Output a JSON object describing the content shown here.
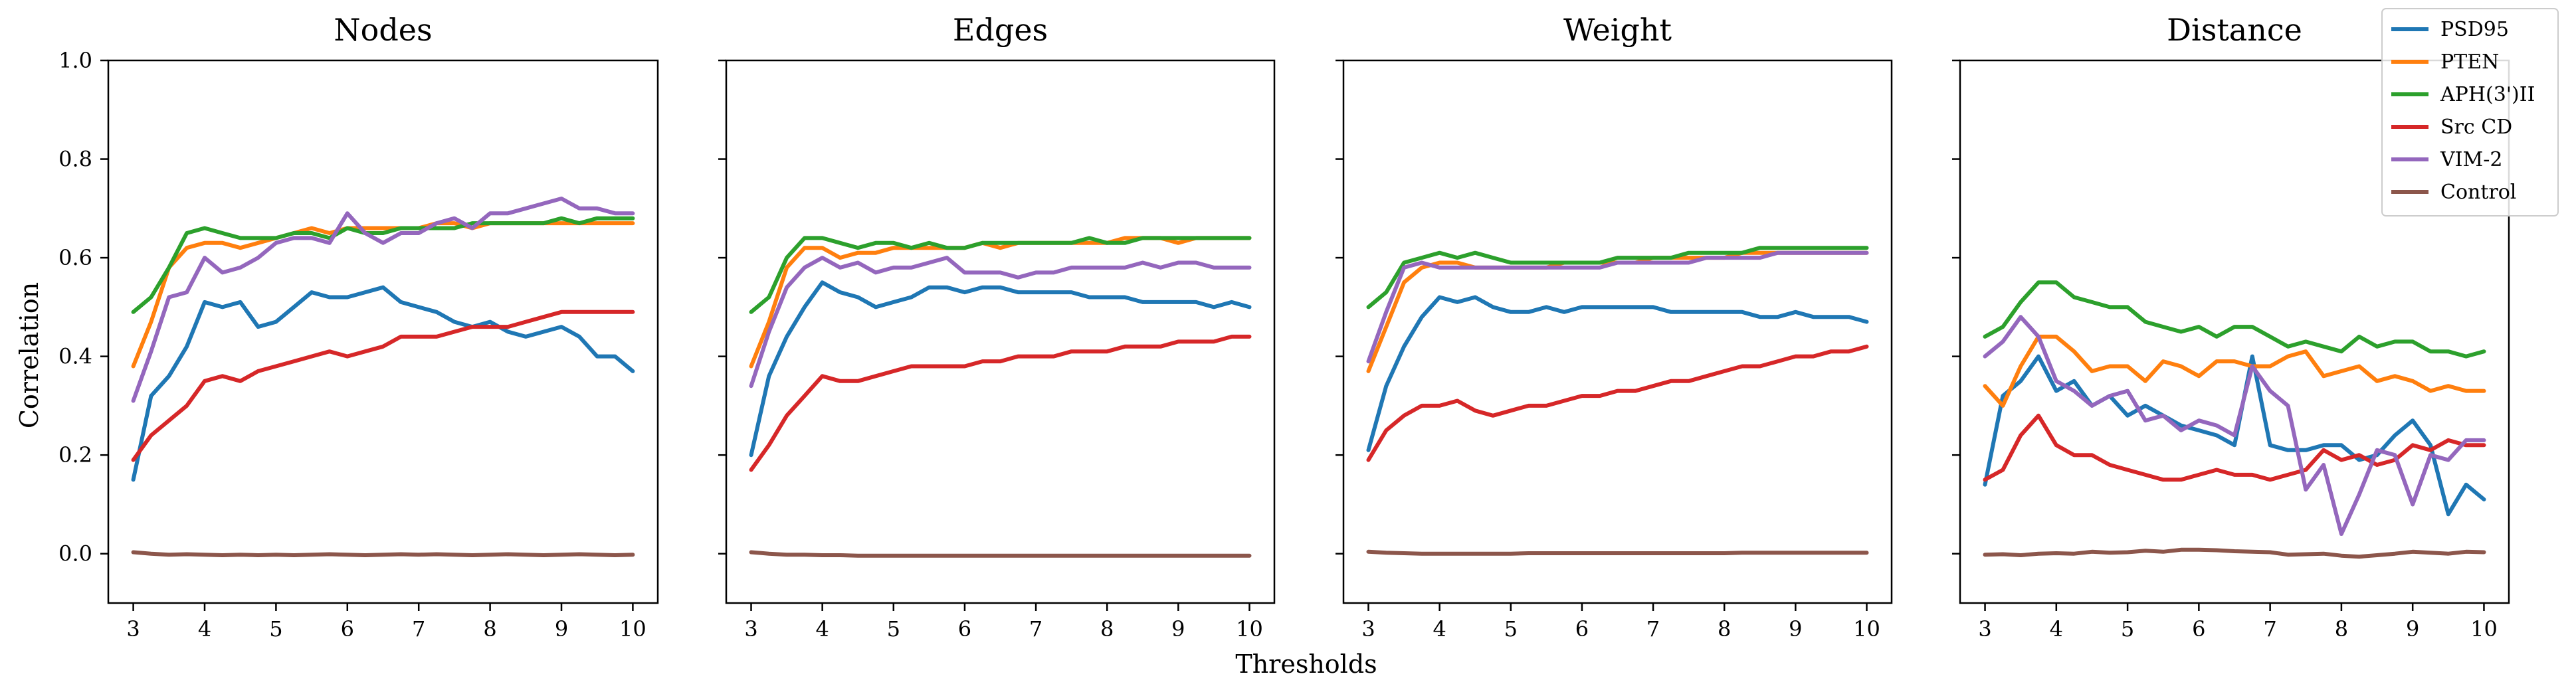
{
  "figure": {
    "xlabel": "Thresholds",
    "ylabel": "Correlation"
  },
  "chart_data": [
    {
      "type": "line",
      "title": "Nodes",
      "xlabel": "Thresholds",
      "ylabel": "Correlation",
      "xlim": [
        2.65,
        10.35
      ],
      "ylim": [
        -0.1,
        1.0
      ],
      "xticks": [
        3,
        4,
        5,
        6,
        7,
        8,
        9,
        10
      ],
      "yticks": [
        0.0,
        0.2,
        0.4,
        0.6,
        0.8,
        1.0
      ],
      "x": [
        3.0,
        3.25,
        3.5,
        3.75,
        4.0,
        4.25,
        4.5,
        4.75,
        5.0,
        5.25,
        5.5,
        5.75,
        6.0,
        6.25,
        6.5,
        6.75,
        7.0,
        7.25,
        7.5,
        7.75,
        8.0,
        8.25,
        8.5,
        8.75,
        9.0,
        9.25,
        9.5,
        9.75,
        10.0
      ],
      "series": [
        {
          "name": "PSD95",
          "color": "#1f77b4",
          "values": [
            0.15,
            0.32,
            0.36,
            0.42,
            0.51,
            0.5,
            0.51,
            0.46,
            0.47,
            0.5,
            0.53,
            0.52,
            0.52,
            0.53,
            0.54,
            0.51,
            0.5,
            0.49,
            0.47,
            0.46,
            0.47,
            0.45,
            0.44,
            0.45,
            0.46,
            0.44,
            0.4,
            0.4,
            0.37
          ]
        },
        {
          "name": "PTEN",
          "color": "#ff7f0e",
          "values": [
            0.38,
            0.47,
            0.58,
            0.62,
            0.63,
            0.63,
            0.62,
            0.63,
            0.64,
            0.65,
            0.66,
            0.65,
            0.66,
            0.66,
            0.66,
            0.66,
            0.66,
            0.67,
            0.67,
            0.66,
            0.67,
            0.67,
            0.67,
            0.67,
            0.67,
            0.67,
            0.67,
            0.67,
            0.67
          ]
        },
        {
          "name": "APH(3')II",
          "color": "#2ca02c",
          "values": [
            0.49,
            0.52,
            0.58,
            0.65,
            0.66,
            0.65,
            0.64,
            0.64,
            0.64,
            0.65,
            0.65,
            0.64,
            0.66,
            0.65,
            0.65,
            0.66,
            0.66,
            0.66,
            0.66,
            0.67,
            0.67,
            0.67,
            0.67,
            0.67,
            0.68,
            0.67,
            0.68,
            0.68,
            0.68
          ]
        },
        {
          "name": "Src CD",
          "color": "#d62728",
          "values": [
            0.19,
            0.24,
            0.27,
            0.3,
            0.35,
            0.36,
            0.35,
            0.37,
            0.38,
            0.39,
            0.4,
            0.41,
            0.4,
            0.41,
            0.42,
            0.44,
            0.44,
            0.44,
            0.45,
            0.46,
            0.46,
            0.46,
            0.47,
            0.48,
            0.49,
            0.49,
            0.49,
            0.49,
            0.49
          ]
        },
        {
          "name": "VIM-2",
          "color": "#9467bd",
          "values": [
            0.31,
            0.41,
            0.52,
            0.53,
            0.6,
            0.57,
            0.58,
            0.6,
            0.63,
            0.64,
            0.64,
            0.63,
            0.69,
            0.65,
            0.63,
            0.65,
            0.65,
            0.67,
            0.68,
            0.66,
            0.69,
            0.69,
            0.7,
            0.71,
            0.72,
            0.7,
            0.7,
            0.69,
            0.69
          ]
        },
        {
          "name": "Control",
          "color": "#8c564b",
          "values": [
            0.003,
            0.0,
            -0.002,
            -0.001,
            -0.002,
            -0.003,
            -0.002,
            -0.003,
            -0.002,
            -0.003,
            -0.002,
            -0.001,
            -0.002,
            -0.003,
            -0.002,
            -0.001,
            -0.002,
            -0.001,
            -0.002,
            -0.003,
            -0.002,
            -0.001,
            -0.002,
            -0.003,
            -0.002,
            -0.001,
            -0.002,
            -0.003,
            -0.002
          ]
        }
      ]
    },
    {
      "type": "line",
      "title": "Edges",
      "xlim": [
        2.65,
        10.35
      ],
      "ylim": [
        -0.1,
        1.0
      ],
      "xticks": [
        3,
        4,
        5,
        6,
        7,
        8,
        9,
        10
      ],
      "yticks": [
        0.0,
        0.2,
        0.4,
        0.6,
        0.8,
        1.0
      ],
      "x": [
        3.0,
        3.25,
        3.5,
        3.75,
        4.0,
        4.25,
        4.5,
        4.75,
        5.0,
        5.25,
        5.5,
        5.75,
        6.0,
        6.25,
        6.5,
        6.75,
        7.0,
        7.25,
        7.5,
        7.75,
        8.0,
        8.25,
        8.5,
        8.75,
        9.0,
        9.25,
        9.5,
        9.75,
        10.0
      ],
      "series": [
        {
          "name": "PSD95",
          "color": "#1f77b4",
          "values": [
            0.2,
            0.36,
            0.44,
            0.5,
            0.55,
            0.53,
            0.52,
            0.5,
            0.51,
            0.52,
            0.54,
            0.54,
            0.53,
            0.54,
            0.54,
            0.53,
            0.53,
            0.53,
            0.53,
            0.52,
            0.52,
            0.52,
            0.51,
            0.51,
            0.51,
            0.51,
            0.5,
            0.51,
            0.5
          ]
        },
        {
          "name": "PTEN",
          "color": "#ff7f0e",
          "values": [
            0.38,
            0.47,
            0.58,
            0.62,
            0.62,
            0.6,
            0.61,
            0.61,
            0.62,
            0.62,
            0.62,
            0.62,
            0.62,
            0.63,
            0.62,
            0.63,
            0.63,
            0.63,
            0.63,
            0.63,
            0.63,
            0.64,
            0.64,
            0.64,
            0.63,
            0.64,
            0.64,
            0.64,
            0.64
          ]
        },
        {
          "name": "APH(3')II",
          "color": "#2ca02c",
          "values": [
            0.49,
            0.52,
            0.6,
            0.64,
            0.64,
            0.63,
            0.62,
            0.63,
            0.63,
            0.62,
            0.63,
            0.62,
            0.62,
            0.63,
            0.63,
            0.63,
            0.63,
            0.63,
            0.63,
            0.64,
            0.63,
            0.63,
            0.64,
            0.64,
            0.64,
            0.64,
            0.64,
            0.64,
            0.64
          ]
        },
        {
          "name": "Src CD",
          "color": "#d62728",
          "values": [
            0.17,
            0.22,
            0.28,
            0.32,
            0.36,
            0.35,
            0.35,
            0.36,
            0.37,
            0.38,
            0.38,
            0.38,
            0.38,
            0.39,
            0.39,
            0.4,
            0.4,
            0.4,
            0.41,
            0.41,
            0.41,
            0.42,
            0.42,
            0.42,
            0.43,
            0.43,
            0.43,
            0.44,
            0.44
          ]
        },
        {
          "name": "VIM-2",
          "color": "#9467bd",
          "values": [
            0.34,
            0.45,
            0.54,
            0.58,
            0.6,
            0.58,
            0.59,
            0.57,
            0.58,
            0.58,
            0.59,
            0.6,
            0.57,
            0.57,
            0.57,
            0.56,
            0.57,
            0.57,
            0.58,
            0.58,
            0.58,
            0.58,
            0.59,
            0.58,
            0.59,
            0.59,
            0.58,
            0.58,
            0.58
          ]
        },
        {
          "name": "Control",
          "color": "#8c564b",
          "values": [
            0.003,
            0.0,
            -0.002,
            -0.002,
            -0.003,
            -0.003,
            -0.004,
            -0.004,
            -0.004,
            -0.004,
            -0.004,
            -0.004,
            -0.004,
            -0.004,
            -0.004,
            -0.004,
            -0.004,
            -0.004,
            -0.004,
            -0.004,
            -0.004,
            -0.004,
            -0.004,
            -0.004,
            -0.004,
            -0.004,
            -0.004,
            -0.004,
            -0.004
          ]
        }
      ]
    },
    {
      "type": "line",
      "title": "Weight",
      "xlim": [
        2.65,
        10.35
      ],
      "ylim": [
        -0.1,
        1.0
      ],
      "xticks": [
        3,
        4,
        5,
        6,
        7,
        8,
        9,
        10
      ],
      "yticks": [
        0.0,
        0.2,
        0.4,
        0.6,
        0.8,
        1.0
      ],
      "x": [
        3.0,
        3.25,
        3.5,
        3.75,
        4.0,
        4.25,
        4.5,
        4.75,
        5.0,
        5.25,
        5.5,
        5.75,
        6.0,
        6.25,
        6.5,
        6.75,
        7.0,
        7.25,
        7.5,
        7.75,
        8.0,
        8.25,
        8.5,
        8.75,
        9.0,
        9.25,
        9.5,
        9.75,
        10.0
      ],
      "series": [
        {
          "name": "PSD95",
          "color": "#1f77b4",
          "values": [
            0.21,
            0.34,
            0.42,
            0.48,
            0.52,
            0.51,
            0.52,
            0.5,
            0.49,
            0.49,
            0.5,
            0.49,
            0.5,
            0.5,
            0.5,
            0.5,
            0.5,
            0.49,
            0.49,
            0.49,
            0.49,
            0.49,
            0.48,
            0.48,
            0.49,
            0.48,
            0.48,
            0.48,
            0.47
          ]
        },
        {
          "name": "PTEN",
          "color": "#ff7f0e",
          "values": [
            0.37,
            0.46,
            0.55,
            0.58,
            0.59,
            0.59,
            0.58,
            0.58,
            0.58,
            0.58,
            0.58,
            0.59,
            0.59,
            0.59,
            0.59,
            0.59,
            0.6,
            0.6,
            0.6,
            0.6,
            0.6,
            0.61,
            0.61,
            0.61,
            0.61,
            0.61,
            0.61,
            0.61,
            0.61
          ]
        },
        {
          "name": "APH(3')II",
          "color": "#2ca02c",
          "values": [
            0.5,
            0.53,
            0.59,
            0.6,
            0.61,
            0.6,
            0.61,
            0.6,
            0.59,
            0.59,
            0.59,
            0.59,
            0.59,
            0.59,
            0.6,
            0.6,
            0.6,
            0.6,
            0.61,
            0.61,
            0.61,
            0.61,
            0.62,
            0.62,
            0.62,
            0.62,
            0.62,
            0.62,
            0.62
          ]
        },
        {
          "name": "Src CD",
          "color": "#d62728",
          "values": [
            0.19,
            0.25,
            0.28,
            0.3,
            0.3,
            0.31,
            0.29,
            0.28,
            0.29,
            0.3,
            0.3,
            0.31,
            0.32,
            0.32,
            0.33,
            0.33,
            0.34,
            0.35,
            0.35,
            0.36,
            0.37,
            0.38,
            0.38,
            0.39,
            0.4,
            0.4,
            0.41,
            0.41,
            0.42
          ]
        },
        {
          "name": "VIM-2",
          "color": "#9467bd",
          "values": [
            0.39,
            0.49,
            0.58,
            0.59,
            0.58,
            0.58,
            0.58,
            0.58,
            0.58,
            0.58,
            0.58,
            0.58,
            0.58,
            0.58,
            0.59,
            0.59,
            0.59,
            0.59,
            0.59,
            0.6,
            0.6,
            0.6,
            0.6,
            0.61,
            0.61,
            0.61,
            0.61,
            0.61,
            0.61
          ]
        },
        {
          "name": "Control",
          "color": "#8c564b",
          "values": [
            0.004,
            0.002,
            0.001,
            0.0,
            0.0,
            0.0,
            0.0,
            0.0,
            0.0,
            0.001,
            0.001,
            0.001,
            0.001,
            0.001,
            0.001,
            0.001,
            0.001,
            0.001,
            0.001,
            0.001,
            0.001,
            0.002,
            0.002,
            0.002,
            0.002,
            0.002,
            0.002,
            0.002,
            0.002
          ]
        }
      ]
    },
    {
      "type": "line",
      "title": "Distance",
      "xlim": [
        2.65,
        10.35
      ],
      "ylim": [
        -0.1,
        1.0
      ],
      "xticks": [
        3,
        4,
        5,
        6,
        7,
        8,
        9,
        10
      ],
      "yticks": [
        0.0,
        0.2,
        0.4,
        0.6,
        0.8,
        1.0
      ],
      "x": [
        3.0,
        3.25,
        3.5,
        3.75,
        4.0,
        4.25,
        4.5,
        4.75,
        5.0,
        5.25,
        5.5,
        5.75,
        6.0,
        6.25,
        6.5,
        6.75,
        7.0,
        7.25,
        7.5,
        7.75,
        8.0,
        8.25,
        8.5,
        8.75,
        9.0,
        9.25,
        9.5,
        9.75,
        10.0
      ],
      "series": [
        {
          "name": "PSD95",
          "color": "#1f77b4",
          "values": [
            0.14,
            0.32,
            0.35,
            0.4,
            0.33,
            0.35,
            0.3,
            0.32,
            0.28,
            0.3,
            0.28,
            0.26,
            0.25,
            0.24,
            0.22,
            0.4,
            0.22,
            0.21,
            0.21,
            0.22,
            0.22,
            0.19,
            0.2,
            0.24,
            0.27,
            0.22,
            0.08,
            0.14,
            0.11
          ]
        },
        {
          "name": "PTEN",
          "color": "#ff7f0e",
          "values": [
            0.34,
            0.3,
            0.38,
            0.44,
            0.44,
            0.41,
            0.37,
            0.38,
            0.38,
            0.35,
            0.39,
            0.38,
            0.36,
            0.39,
            0.39,
            0.38,
            0.38,
            0.4,
            0.41,
            0.36,
            0.37,
            0.38,
            0.35,
            0.36,
            0.35,
            0.33,
            0.34,
            0.33,
            0.33
          ]
        },
        {
          "name": "APH(3')II",
          "color": "#2ca02c",
          "values": [
            0.44,
            0.46,
            0.51,
            0.55,
            0.55,
            0.52,
            0.51,
            0.5,
            0.5,
            0.47,
            0.46,
            0.45,
            0.46,
            0.44,
            0.46,
            0.46,
            0.44,
            0.42,
            0.43,
            0.42,
            0.41,
            0.44,
            0.42,
            0.43,
            0.43,
            0.41,
            0.41,
            0.4,
            0.41
          ]
        },
        {
          "name": "Src CD",
          "color": "#d62728",
          "values": [
            0.15,
            0.17,
            0.24,
            0.28,
            0.22,
            0.2,
            0.2,
            0.18,
            0.17,
            0.16,
            0.15,
            0.15,
            0.16,
            0.17,
            0.16,
            0.16,
            0.15,
            0.16,
            0.17,
            0.21,
            0.19,
            0.2,
            0.18,
            0.19,
            0.22,
            0.21,
            0.23,
            0.22,
            0.22
          ]
        },
        {
          "name": "VIM-2",
          "color": "#9467bd",
          "values": [
            0.4,
            0.43,
            0.48,
            0.44,
            0.35,
            0.33,
            0.3,
            0.32,
            0.33,
            0.27,
            0.28,
            0.25,
            0.27,
            0.26,
            0.24,
            0.38,
            0.33,
            0.3,
            0.13,
            0.18,
            0.04,
            0.12,
            0.21,
            0.2,
            0.1,
            0.2,
            0.19,
            0.23,
            0.23
          ]
        },
        {
          "name": "Control",
          "color": "#8c564b",
          "values": [
            -0.002,
            -0.001,
            -0.003,
            0.0,
            0.001,
            0.0,
            0.004,
            0.002,
            0.003,
            0.006,
            0.004,
            0.008,
            0.008,
            0.007,
            0.005,
            0.004,
            0.003,
            -0.002,
            -0.001,
            0.0,
            -0.004,
            -0.006,
            -0.003,
            0.0,
            0.004,
            0.002,
            0.0,
            0.004,
            0.003
          ]
        }
      ]
    }
  ]
}
